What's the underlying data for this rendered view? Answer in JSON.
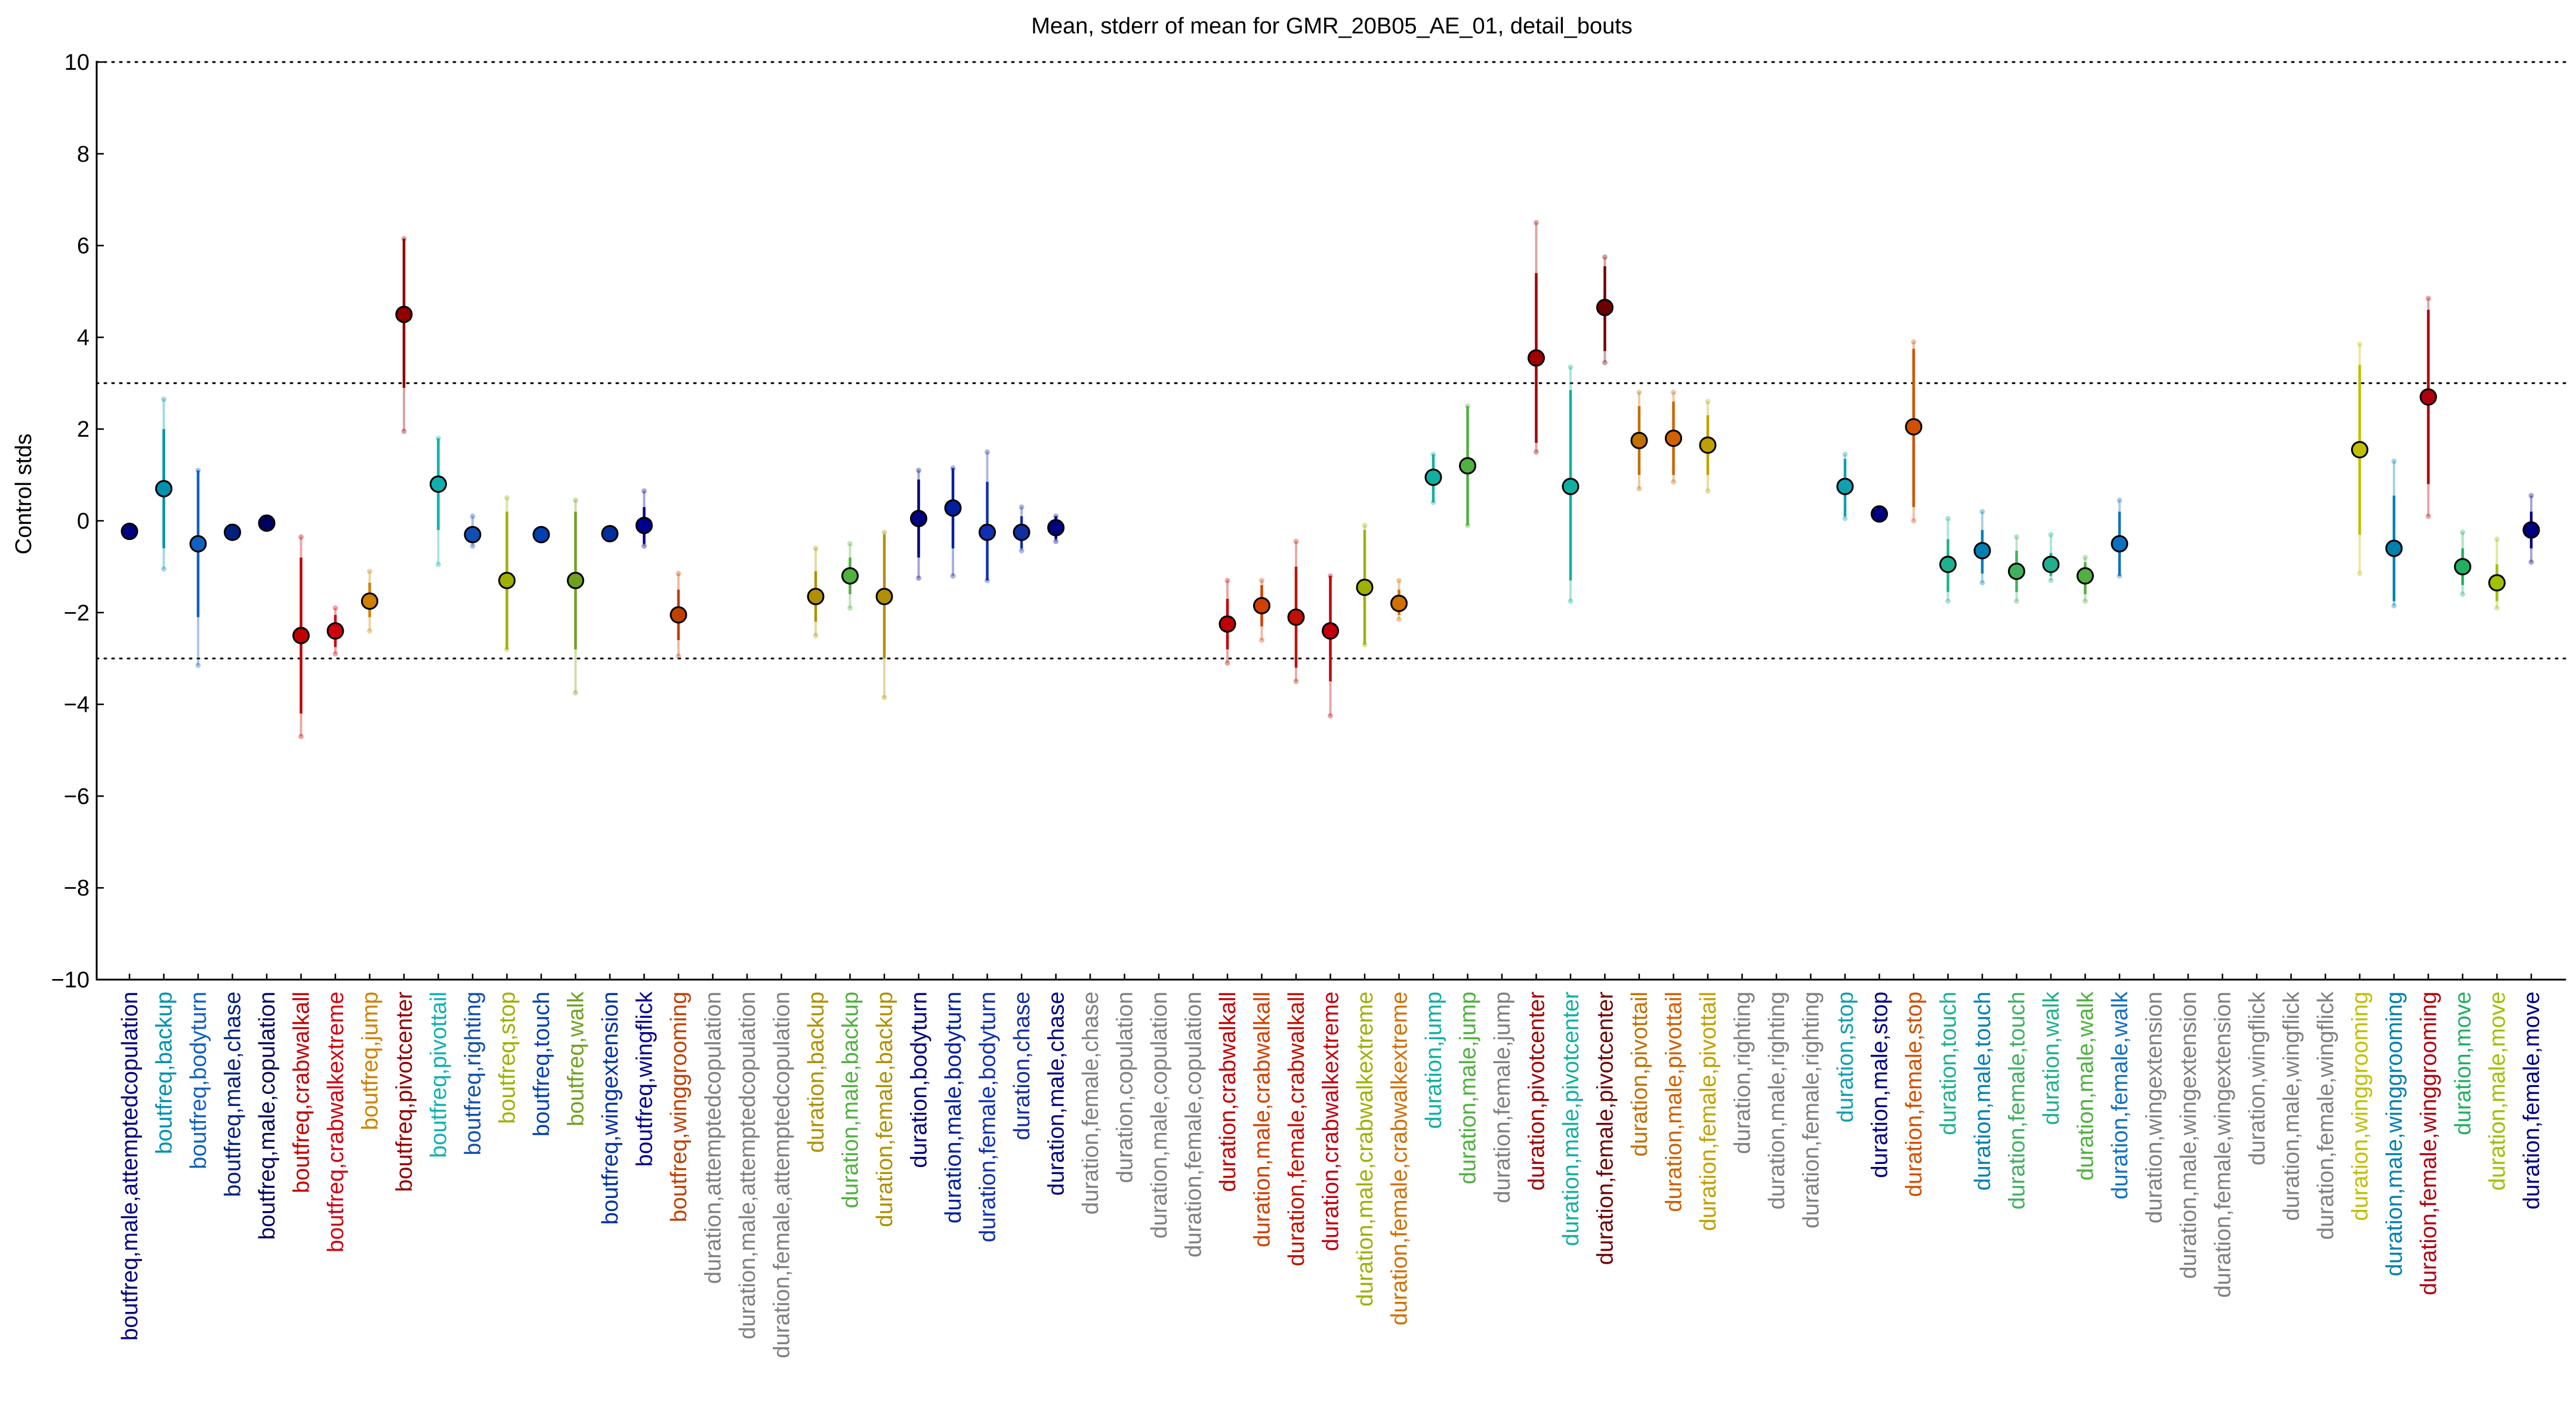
{
  "chart_data": {
    "type": "scatter",
    "title": "Mean, stderr of mean for GMR_20B05_AE_01, detail_bouts",
    "xlabel": "",
    "ylabel": "Control stds",
    "ylim": [
      -10,
      10
    ],
    "yticks": [
      -10,
      -8,
      -6,
      -4,
      -2,
      0,
      2,
      4,
      6,
      8,
      10
    ],
    "dotted_lines": [
      -10,
      -3,
      3,
      10
    ],
    "grid": false,
    "points": [
      {
        "label": "boutfreq,male,attemptedcopulation",
        "mean": -0.23,
        "se_lo": -0.23,
        "se_hi": -0.23,
        "lo2": -0.23,
        "hi2": -0.23,
        "color": "#000080"
      },
      {
        "label": "boutfreq,backup",
        "mean": 0.7,
        "se_lo": -0.6,
        "se_hi": 2.0,
        "lo2": -1.05,
        "hi2": 2.65,
        "color": "#0090b0"
      },
      {
        "label": "boutfreq,bodyturn",
        "mean": -0.5,
        "se_lo": -2.1,
        "se_hi": 1.1,
        "lo2": -3.15,
        "hi2": 1.1,
        "color": "#1060c0"
      },
      {
        "label": "boutfreq,male,chase",
        "mean": -0.25,
        "se_lo": -0.25,
        "se_hi": -0.25,
        "lo2": -0.25,
        "hi2": -0.25,
        "color": "#002080"
      },
      {
        "label": "boutfreq,male,copulation",
        "mean": -0.05,
        "se_lo": -0.05,
        "se_hi": -0.05,
        "lo2": -0.05,
        "hi2": -0.05,
        "color": "#000060"
      },
      {
        "label": "boutfreq,crabwalkall",
        "mean": -2.5,
        "se_lo": -4.2,
        "se_hi": -0.8,
        "lo2": -4.7,
        "hi2": -0.35,
        "color": "#c00000"
      },
      {
        "label": "boutfreq,crabwalkextreme",
        "mean": -2.4,
        "se_lo": -2.75,
        "se_hi": -2.05,
        "lo2": -2.9,
        "hi2": -1.9,
        "color": "#d00010"
      },
      {
        "label": "boutfreq,jump",
        "mean": -1.75,
        "se_lo": -2.1,
        "se_hi": -1.35,
        "lo2": -2.4,
        "hi2": -1.1,
        "color": "#d08000"
      },
      {
        "label": "boutfreq,pivotcenter",
        "mean": 4.5,
        "se_lo": 2.9,
        "se_hi": 6.15,
        "lo2": 1.95,
        "hi2": 6.15,
        "color": "#900000"
      },
      {
        "label": "boutfreq,pivottail",
        "mean": 0.8,
        "se_lo": -0.2,
        "se_hi": 1.8,
        "lo2": -0.95,
        "hi2": 1.8,
        "color": "#10b0b0"
      },
      {
        "label": "boutfreq,righting",
        "mean": -0.3,
        "se_lo": -0.45,
        "se_hi": -0.15,
        "lo2": -0.55,
        "hi2": 0.1,
        "color": "#1050b0"
      },
      {
        "label": "boutfreq,stop",
        "mean": -1.3,
        "se_lo": -2.8,
        "se_hi": 0.2,
        "lo2": -2.8,
        "hi2": 0.5,
        "color": "#a0b000"
      },
      {
        "label": "boutfreq,touch",
        "mean": -0.3,
        "se_lo": -0.3,
        "se_hi": -0.3,
        "lo2": -0.3,
        "hi2": -0.3,
        "color": "#0040b0"
      },
      {
        "label": "boutfreq,walk",
        "mean": -1.3,
        "se_lo": -2.8,
        "se_hi": 0.2,
        "lo2": -3.75,
        "hi2": 0.45,
        "color": "#70a020"
      },
      {
        "label": "boutfreq,wingextension",
        "mean": -0.28,
        "se_lo": -0.28,
        "se_hi": -0.28,
        "lo2": -0.28,
        "hi2": -0.28,
        "color": "#0030a0"
      },
      {
        "label": "boutfreq,wingflick",
        "mean": -0.1,
        "se_lo": -0.5,
        "se_hi": 0.3,
        "lo2": -0.55,
        "hi2": 0.65,
        "color": "#000090"
      },
      {
        "label": "boutfreq,winggrooming",
        "mean": -2.05,
        "se_lo": -2.6,
        "se_hi": -1.5,
        "lo2": -2.95,
        "hi2": -1.15,
        "color": "#c04000"
      },
      {
        "label": "duration,attemptedcopulation",
        "mean": null,
        "color": "#808080"
      },
      {
        "label": "duration,male,attemptedcopulation",
        "mean": null,
        "color": "#808080"
      },
      {
        "label": "duration,female,attemptedcopulation",
        "mean": null,
        "color": "#808080"
      },
      {
        "label": "duration,backup",
        "mean": -1.65,
        "se_lo": -2.2,
        "se_hi": -1.1,
        "lo2": -2.5,
        "hi2": -0.6,
        "color": "#b09000"
      },
      {
        "label": "duration,male,backup",
        "mean": -1.2,
        "se_lo": -1.6,
        "se_hi": -0.8,
        "lo2": -1.9,
        "hi2": -0.5,
        "color": "#50b040"
      },
      {
        "label": "duration,female,backup",
        "mean": -1.65,
        "se_lo": -3.0,
        "se_hi": -0.3,
        "lo2": -3.85,
        "hi2": -0.25,
        "color": "#b09000"
      },
      {
        "label": "duration,bodyturn",
        "mean": 0.05,
        "se_lo": -0.8,
        "se_hi": 0.9,
        "lo2": -1.25,
        "hi2": 1.1,
        "color": "#000080"
      },
      {
        "label": "duration,male,bodyturn",
        "mean": 0.28,
        "se_lo": -0.6,
        "se_hi": 1.15,
        "lo2": -1.2,
        "hi2": 1.15,
        "color": "#0020a0"
      },
      {
        "label": "duration,female,bodyturn",
        "mean": -0.25,
        "se_lo": -1.3,
        "se_hi": 0.85,
        "lo2": -1.3,
        "hi2": 1.5,
        "color": "#1030b0"
      },
      {
        "label": "duration,chase",
        "mean": -0.25,
        "se_lo": -0.6,
        "se_hi": 0.1,
        "lo2": -0.65,
        "hi2": 0.3,
        "color": "#1030a0"
      },
      {
        "label": "duration,male,chase",
        "mean": -0.15,
        "se_lo": -0.4,
        "se_hi": 0.1,
        "lo2": -0.45,
        "hi2": 0.1,
        "color": "#000080"
      },
      {
        "label": "duration,female,chase",
        "mean": null,
        "color": "#808080"
      },
      {
        "label": "duration,copulation",
        "mean": null,
        "color": "#808080"
      },
      {
        "label": "duration,male,copulation",
        "mean": null,
        "color": "#808080"
      },
      {
        "label": "duration,female,copulation",
        "mean": null,
        "color": "#808080"
      },
      {
        "label": "duration,crabwalkall",
        "mean": -2.25,
        "se_lo": -2.8,
        "se_hi": -1.7,
        "lo2": -3.1,
        "hi2": -1.3,
        "color": "#c00000"
      },
      {
        "label": "duration,male,crabwalkall",
        "mean": -1.85,
        "se_lo": -2.3,
        "se_hi": -1.4,
        "lo2": -2.6,
        "hi2": -1.3,
        "color": "#d04000"
      },
      {
        "label": "duration,female,crabwalkall",
        "mean": -2.1,
        "se_lo": -3.2,
        "se_hi": -1.0,
        "lo2": -3.5,
        "hi2": -0.45,
        "color": "#c01000"
      },
      {
        "label": "duration,crabwalkextreme",
        "mean": -2.4,
        "se_lo": -3.5,
        "se_hi": -1.2,
        "lo2": -4.25,
        "hi2": -1.2,
        "color": "#c00010"
      },
      {
        "label": "duration,male,crabwalkextreme",
        "mean": -1.45,
        "se_lo": -2.7,
        "se_hi": -0.2,
        "lo2": -2.7,
        "hi2": -0.1,
        "color": "#a0b000"
      },
      {
        "label": "duration,female,crabwalkextreme",
        "mean": -1.8,
        "se_lo": -2.05,
        "se_hi": -1.5,
        "lo2": -2.15,
        "hi2": -1.3,
        "color": "#d07000"
      },
      {
        "label": "duration,jump",
        "mean": 0.95,
        "se_lo": 0.4,
        "se_hi": 1.45,
        "lo2": 0.4,
        "hi2": 1.45,
        "color": "#10b0a0"
      },
      {
        "label": "duration,male,jump",
        "mean": 1.2,
        "se_lo": -0.1,
        "se_hi": 2.5,
        "lo2": -0.1,
        "hi2": 2.5,
        "color": "#50b040"
      },
      {
        "label": "duration,female,jump",
        "mean": null,
        "color": "#808080"
      },
      {
        "label": "duration,pivotcenter",
        "mean": 3.55,
        "se_lo": 1.7,
        "se_hi": 5.4,
        "lo2": 1.5,
        "hi2": 6.5,
        "color": "#a00000"
      },
      {
        "label": "duration,male,pivotcenter",
        "mean": 0.75,
        "se_lo": -1.3,
        "se_hi": 2.85,
        "lo2": -1.75,
        "hi2": 3.35,
        "color": "#10b0a0"
      },
      {
        "label": "duration,female,pivotcenter",
        "mean": 4.65,
        "se_lo": 3.7,
        "se_hi": 5.55,
        "lo2": 3.45,
        "hi2": 5.75,
        "color": "#700000"
      },
      {
        "label": "duration,pivottail",
        "mean": 1.75,
        "se_lo": 1.0,
        "se_hi": 2.5,
        "lo2": 0.7,
        "hi2": 2.8,
        "color": "#c07000"
      },
      {
        "label": "duration,male,pivottail",
        "mean": 1.8,
        "se_lo": 1.0,
        "se_hi": 2.6,
        "lo2": 0.85,
        "hi2": 2.8,
        "color": "#d06000"
      },
      {
        "label": "duration,female,pivottail",
        "mean": 1.65,
        "se_lo": 1.0,
        "se_hi": 2.3,
        "lo2": 0.65,
        "hi2": 2.6,
        "color": "#c0a000"
      },
      {
        "label": "duration,righting",
        "mean": null,
        "color": "#808080"
      },
      {
        "label": "duration,male,righting",
        "mean": null,
        "color": "#808080"
      },
      {
        "label": "duration,female,righting",
        "mean": null,
        "color": "#808080"
      },
      {
        "label": "duration,stop",
        "mean": 0.75,
        "se_lo": 0.1,
        "se_hi": 1.35,
        "lo2": 0.05,
        "hi2": 1.45,
        "color": "#10a0b0"
      },
      {
        "label": "duration,male,stop",
        "mean": 0.15,
        "se_lo": 0.15,
        "se_hi": 0.15,
        "lo2": 0.15,
        "hi2": 0.15,
        "color": "#000080"
      },
      {
        "label": "duration,female,stop",
        "mean": 2.05,
        "se_lo": 0.3,
        "se_hi": 3.75,
        "lo2": 0.0,
        "hi2": 3.9,
        "color": "#d05000"
      },
      {
        "label": "duration,touch",
        "mean": -0.95,
        "se_lo": -1.55,
        "se_hi": -0.4,
        "lo2": -1.75,
        "hi2": 0.05,
        "color": "#20b090"
      },
      {
        "label": "duration,male,touch",
        "mean": -0.65,
        "se_lo": -1.15,
        "se_hi": -0.2,
        "lo2": -1.35,
        "hi2": 0.2,
        "color": "#0080b0"
      },
      {
        "label": "duration,female,touch",
        "mean": -1.1,
        "se_lo": -1.55,
        "se_hi": -0.65,
        "lo2": -1.75,
        "hi2": -0.35,
        "color": "#40b060"
      },
      {
        "label": "duration,walk",
        "mean": -0.95,
        "se_lo": -1.2,
        "se_hi": -0.7,
        "lo2": -1.3,
        "hi2": -0.3,
        "color": "#20b090"
      },
      {
        "label": "duration,male,walk",
        "mean": -1.2,
        "se_lo": -1.6,
        "se_hi": -0.9,
        "lo2": -1.75,
        "hi2": -0.8,
        "color": "#50b040"
      },
      {
        "label": "duration,female,walk",
        "mean": -0.5,
        "se_lo": -1.2,
        "se_hi": 0.2,
        "lo2": -1.2,
        "hi2": 0.45,
        "color": "#1070c0"
      },
      {
        "label": "duration,wingextension",
        "mean": null,
        "color": "#808080"
      },
      {
        "label": "duration,male,wingextension",
        "mean": null,
        "color": "#808080"
      },
      {
        "label": "duration,female,wingextension",
        "mean": null,
        "color": "#808080"
      },
      {
        "label": "duration,wingflick",
        "mean": null,
        "color": "#808080"
      },
      {
        "label": "duration,male,wingflick",
        "mean": null,
        "color": "#808080"
      },
      {
        "label": "duration,female,wingflick",
        "mean": null,
        "color": "#808080"
      },
      {
        "label": "duration,winggrooming",
        "mean": 1.55,
        "se_lo": -0.3,
        "se_hi": 3.4,
        "lo2": -1.15,
        "hi2": 3.85,
        "color": "#c0c000"
      },
      {
        "label": "duration,male,winggrooming",
        "mean": -0.6,
        "se_lo": -1.75,
        "se_hi": 0.55,
        "lo2": -1.85,
        "hi2": 1.3,
        "color": "#0080b0"
      },
      {
        "label": "duration,female,winggrooming",
        "mean": 2.7,
        "se_lo": 0.8,
        "se_hi": 4.6,
        "lo2": 0.1,
        "hi2": 4.85,
        "color": "#b00010"
      },
      {
        "label": "duration,move",
        "mean": -1.0,
        "se_lo": -1.4,
        "se_hi": -0.6,
        "lo2": -1.6,
        "hi2": -0.25,
        "color": "#20b060"
      },
      {
        "label": "duration,male,move",
        "mean": -1.35,
        "se_lo": -1.75,
        "se_hi": -0.95,
        "lo2": -1.9,
        "hi2": -0.4,
        "color": "#a0c000"
      },
      {
        "label": "duration,female,move",
        "mean": -0.2,
        "se_lo": -0.6,
        "se_hi": 0.2,
        "lo2": -0.9,
        "hi2": 0.55,
        "color": "#000080"
      }
    ]
  }
}
